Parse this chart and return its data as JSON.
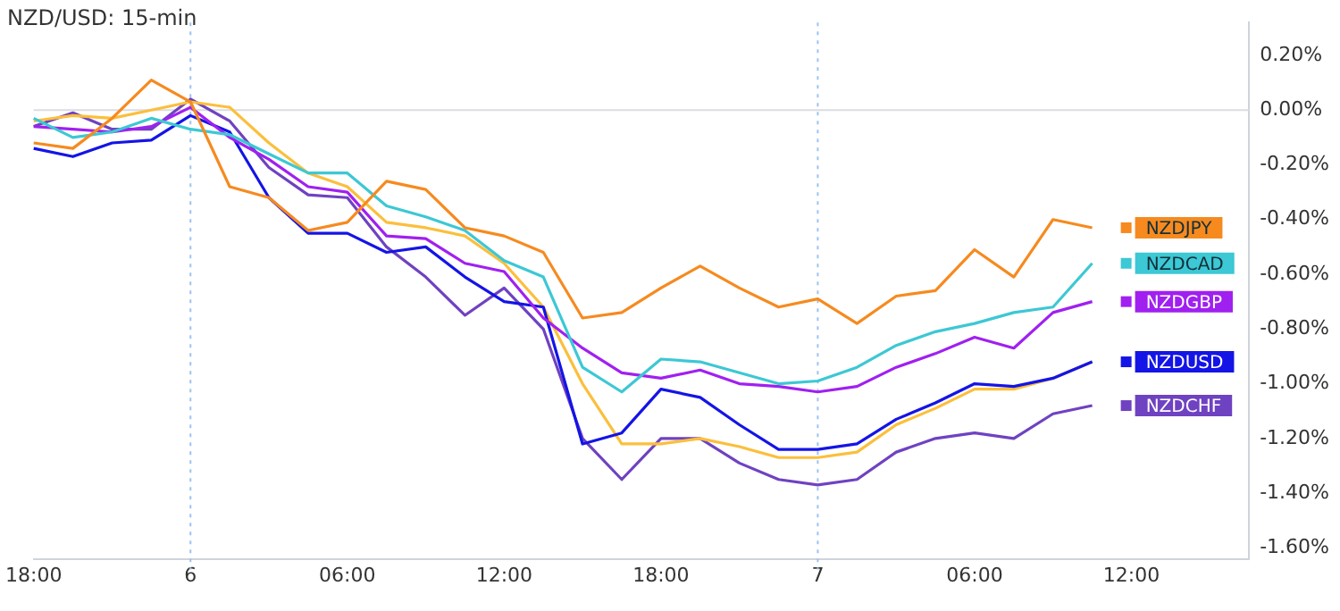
{
  "chart_data": {
    "type": "line",
    "title": "NZD/USD: 15-min",
    "categories": [
      "18:00",
      null,
      null,
      null,
      "6",
      null,
      null,
      null,
      "06:00",
      null,
      null,
      null,
      "12:00",
      null,
      null,
      null,
      "18:00",
      null,
      null,
      null,
      "7",
      null,
      null,
      null,
      "06:00",
      null,
      null,
      null,
      "12:00",
      null,
      null,
      null
    ],
    "series": [
      {
        "name": "NZDJPY",
        "color": "#f68a1f",
        "values": [
          -0.12,
          -0.14,
          -0.03,
          0.11,
          0.03,
          -0.28,
          -0.32,
          -0.44,
          -0.41,
          -0.26,
          -0.29,
          -0.43,
          -0.46,
          -0.52,
          -0.76,
          -0.74,
          -0.65,
          -0.57,
          -0.65,
          -0.72,
          -0.69,
          -0.78,
          -0.68,
          -0.66,
          -0.51,
          -0.61,
          -0.4,
          -0.43,
          null,
          null,
          null,
          null
        ]
      },
      {
        "name": "NZDCAD",
        "color": "#3cc8d4",
        "values": [
          -0.03,
          -0.1,
          -0.08,
          -0.03,
          -0.07,
          -0.09,
          -0.16,
          -0.23,
          -0.23,
          -0.35,
          -0.39,
          -0.44,
          -0.55,
          -0.61,
          -0.94,
          -1.03,
          -0.91,
          -0.92,
          -0.96,
          -1.0,
          -0.99,
          -0.94,
          -0.86,
          -0.81,
          -0.78,
          -0.74,
          -0.72,
          -0.56,
          null,
          null,
          null,
          null
        ]
      },
      {
        "name": "NZDGBP",
        "color": "#a020f0",
        "values": [
          -0.06,
          -0.07,
          -0.08,
          -0.06,
          0.01,
          -0.1,
          -0.18,
          -0.28,
          -0.3,
          -0.46,
          -0.47,
          -0.56,
          -0.59,
          -0.76,
          -0.87,
          -0.96,
          -0.98,
          -0.95,
          -1.0,
          -1.01,
          -1.03,
          -1.01,
          -0.94,
          -0.89,
          -0.83,
          -0.87,
          -0.74,
          -0.7,
          null,
          null,
          null,
          null
        ]
      },
      {
        "name": "NZDUSD",
        "color": "#1414e6",
        "values": [
          -0.14,
          -0.17,
          -0.12,
          -0.11,
          -0.02,
          -0.08,
          -0.32,
          -0.45,
          -0.45,
          -0.52,
          -0.5,
          -0.61,
          -0.7,
          -0.72,
          -1.22,
          -1.18,
          -1.02,
          -1.05,
          -1.15,
          -1.24,
          -1.24,
          -1.22,
          -1.13,
          -1.07,
          -1.0,
          -1.01,
          -0.98,
          -0.92,
          null,
          null,
          null,
          null
        ]
      },
      {
        "color": "#fbbf3c",
        "values": [
          -0.04,
          -0.02,
          -0.03,
          0.0,
          0.03,
          0.01,
          -0.12,
          -0.23,
          -0.28,
          -0.41,
          -0.43,
          -0.46,
          -0.56,
          -0.72,
          -1.0,
          -1.22,
          -1.22,
          -1.2,
          -1.23,
          -1.27,
          -1.27,
          -1.25,
          -1.15,
          -1.09,
          -1.02,
          -1.02,
          -0.98,
          -0.92,
          null,
          null,
          null,
          null
        ]
      },
      {
        "name": "NZDCHF",
        "color": "#6f42c1",
        "values": [
          -0.06,
          -0.01,
          -0.07,
          -0.07,
          0.04,
          -0.04,
          -0.21,
          -0.31,
          -0.32,
          -0.5,
          -0.61,
          -0.75,
          -0.65,
          -0.8,
          -1.2,
          -1.35,
          -1.2,
          -1.2,
          -1.29,
          -1.35,
          -1.37,
          -1.35,
          -1.25,
          -1.2,
          -1.18,
          -1.2,
          -1.11,
          -1.08,
          null,
          null,
          null,
          null
        ]
      }
    ],
    "ylim": [
      -1.64,
      0.32
    ],
    "yticks": [
      {
        "value": 0.2,
        "label": "0.20%"
      },
      {
        "value": 0,
        "label": "0.00%"
      },
      {
        "value": -0.2,
        "label": "-0.20%"
      },
      {
        "value": -0.4,
        "label": "-0.40%"
      },
      {
        "value": -0.6,
        "label": "-0.60%"
      },
      {
        "value": -0.8,
        "label": "-0.80%"
      },
      {
        "value": -1,
        "label": "-1.00%"
      },
      {
        "value": -1.2,
        "label": "-1.20%"
      },
      {
        "value": -1.4,
        "label": "-1.40%"
      },
      {
        "value": -1.6,
        "label": "-1.60%"
      }
    ],
    "ref_lines": [
      {
        "axis": "x",
        "value": "6",
        "label": null,
        "color": "#9cc3f0",
        "line_style": "dotted"
      },
      {
        "axis": "x",
        "value": "7",
        "label": null,
        "color": "#9cc3f0",
        "line_style": "dotted"
      },
      {
        "axis": "y",
        "value": 0,
        "label": null,
        "color": "#dadce0",
        "line_style": "solid"
      }
    ],
    "grid": false,
    "legend": "right",
    "marker": "none",
    "line_style": "solid"
  }
}
